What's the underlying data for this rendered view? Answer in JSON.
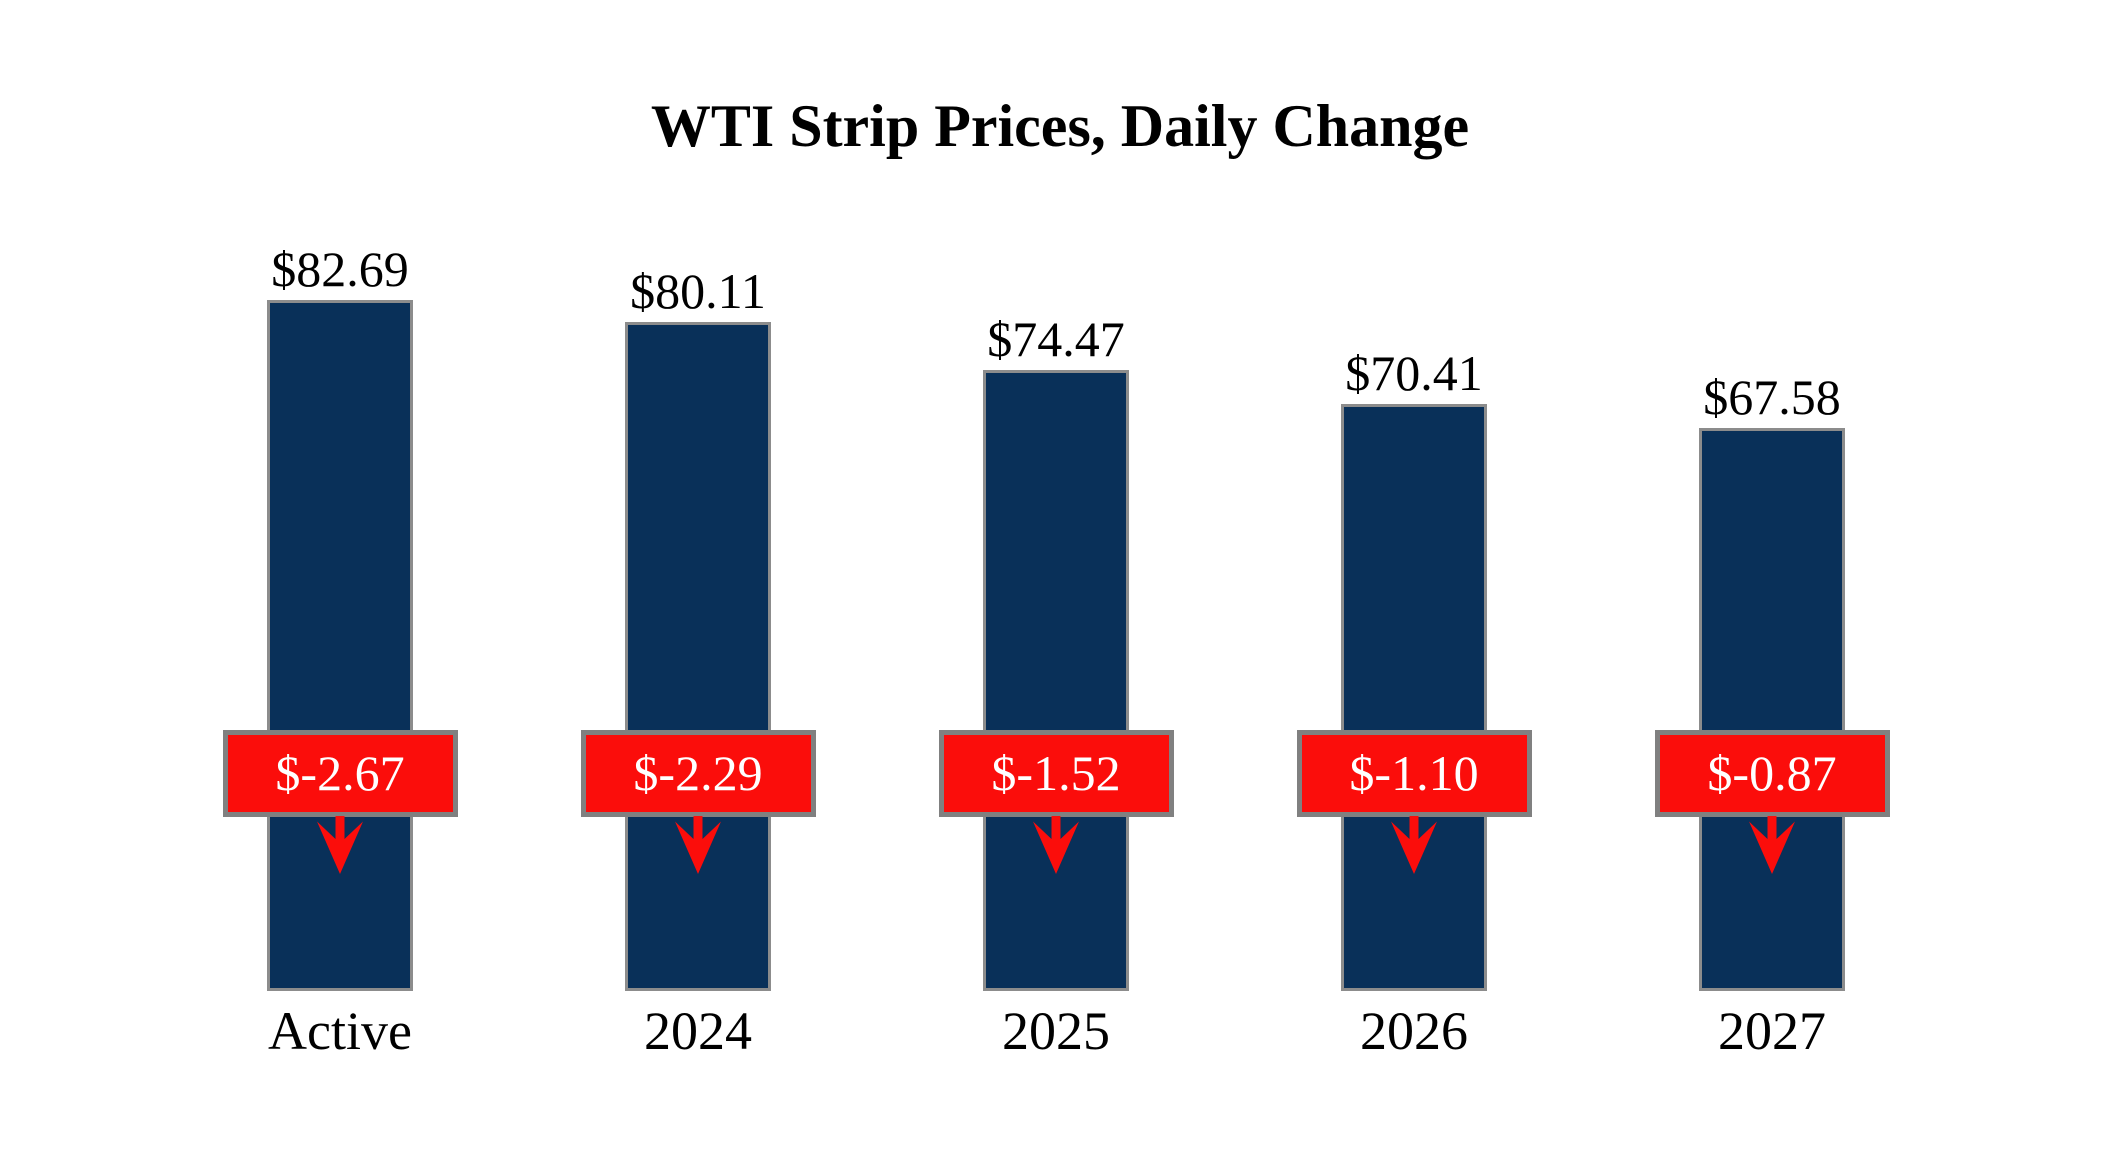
{
  "title": "WTI Strip Prices, Daily Change",
  "chart_data": {
    "type": "bar",
    "title": "WTI Strip Prices, Daily Change",
    "categories": [
      "Active",
      "2024",
      "2025",
      "2026",
      "2027"
    ],
    "series": [
      {
        "name": "WTI Strip Price",
        "values": [
          82.69,
          80.11,
          74.47,
          70.41,
          67.58
        ],
        "labels": [
          "$82.69",
          "$80.11",
          "$74.47",
          "$70.41",
          "$67.58"
        ]
      },
      {
        "name": "Daily Change",
        "values": [
          -2.67,
          -2.29,
          -1.52,
          -1.1,
          -0.87
        ],
        "labels": [
          "$-2.67",
          "$-2.29",
          "$-1.52",
          "$-1.10",
          "$-0.87"
        ]
      }
    ],
    "ylim": [
      0,
      83
    ],
    "grid": false,
    "legend": false,
    "axis_lines": false,
    "annotation_style": "red change badge with down arrow centered on each bar",
    "colors": {
      "bar_fill": "#093059",
      "bar_border": "#8C8C8C",
      "badge_fill": "#FB0D0B",
      "badge_border": "#808080",
      "badge_text": "#FFFFFF",
      "arrow": "#FB0D0B",
      "label_text": "#000000",
      "title_text": "#000000",
      "background": "#FFFFFF"
    },
    "icons": [
      "down-arrow-icon"
    ]
  }
}
